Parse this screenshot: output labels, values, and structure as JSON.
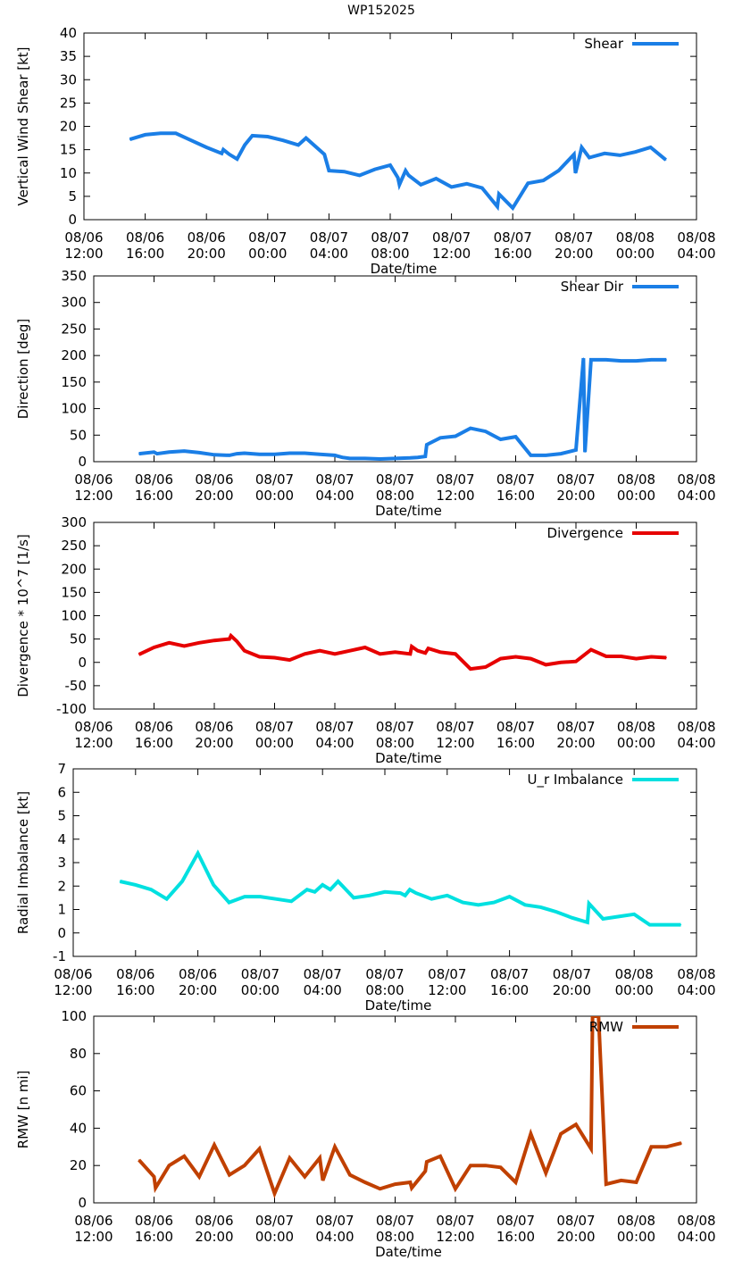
{
  "figure_title": "WP152025",
  "chart_data": [
    {
      "type": "line",
      "title": "",
      "xlabel": "Date/time",
      "ylabel": "Vertical Wind Shear [kt]",
      "ylim": [
        0,
        40
      ],
      "yticks": [
        0,
        5,
        10,
        15,
        20,
        25,
        30,
        35,
        40
      ],
      "xlim_hours": [
        0,
        40
      ],
      "xticks": [
        {
          "h": 0,
          "line1": "08/06",
          "line2": "12:00"
        },
        {
          "h": 4,
          "line1": "08/06",
          "line2": "16:00"
        },
        {
          "h": 8,
          "line1": "08/06",
          "line2": "20:00"
        },
        {
          "h": 12,
          "line1": "08/07",
          "line2": "00:00"
        },
        {
          "h": 16,
          "line1": "08/07",
          "line2": "04:00"
        },
        {
          "h": 20,
          "line1": "08/07",
          "line2": "08:00"
        },
        {
          "h": 24,
          "line1": "08/07",
          "line2": "12:00"
        },
        {
          "h": 28,
          "line1": "08/07",
          "line2": "16:00"
        },
        {
          "h": 32,
          "line1": "08/07",
          "line2": "20:00"
        },
        {
          "h": 36,
          "line1": "08/08",
          "line2": "00:00"
        },
        {
          "h": 40,
          "line1": "08/08",
          "line2": "04:00"
        }
      ],
      "legend": "top-right",
      "series": [
        {
          "name": "Shear",
          "color": "#1a7ee6",
          "x": [
            3,
            4,
            5,
            6,
            7,
            8,
            9,
            9.1,
            9.5,
            10,
            10.5,
            11,
            12,
            13,
            14,
            14.5,
            15.7,
            16,
            17,
            18,
            19,
            20,
            20.5,
            20.6,
            21,
            21.2,
            22,
            23,
            24,
            25,
            26,
            27,
            27.1,
            28,
            29,
            30,
            31,
            32,
            32.1,
            32.5,
            33,
            34,
            35,
            36,
            37,
            38
          ],
          "y": [
            17.2,
            18.2,
            18.5,
            18.5,
            17,
            15.5,
            14.2,
            15,
            14,
            13,
            16,
            18,
            17.8,
            17,
            16,
            17.5,
            14,
            10.5,
            10.3,
            9.5,
            10.8,
            11.7,
            9,
            7.5,
            10.5,
            9.5,
            7.5,
            8.8,
            7,
            7.7,
            6.8,
            2.8,
            5.5,
            2.5,
            7.8,
            8.4,
            10.5,
            14,
            10,
            15.5,
            13.3,
            14.2,
            13.8,
            14.5,
            15.5,
            12.8
          ]
        }
      ]
    },
    {
      "type": "line",
      "title": "",
      "xlabel": "Date/time",
      "ylabel": "Direction [deg]",
      "ylim": [
        0,
        350
      ],
      "yticks": [
        0,
        50,
        100,
        150,
        200,
        250,
        300,
        350
      ],
      "xlim_hours": [
        0,
        40
      ],
      "xticks": [
        {
          "h": 0,
          "line1": "08/06",
          "line2": "12:00"
        },
        {
          "h": 4,
          "line1": "08/06",
          "line2": "16:00"
        },
        {
          "h": 8,
          "line1": "08/06",
          "line2": "20:00"
        },
        {
          "h": 12,
          "line1": "08/07",
          "line2": "00:00"
        },
        {
          "h": 16,
          "line1": "08/07",
          "line2": "04:00"
        },
        {
          "h": 20,
          "line1": "08/07",
          "line2": "08:00"
        },
        {
          "h": 24,
          "line1": "08/07",
          "line2": "12:00"
        },
        {
          "h": 28,
          "line1": "08/07",
          "line2": "16:00"
        },
        {
          "h": 32,
          "line1": "08/07",
          "line2": "20:00"
        },
        {
          "h": 36,
          "line1": "08/08",
          "line2": "00:00"
        },
        {
          "h": 40,
          "line1": "08/08",
          "line2": "04:00"
        }
      ],
      "legend": "top-right",
      "series": [
        {
          "name": "Shear Dir",
          "color": "#1a7ee6",
          "x": [
            3,
            4,
            4.2,
            5,
            6,
            7,
            8,
            9,
            9.5,
            10,
            11,
            12,
            13,
            14,
            15,
            16,
            16.5,
            17,
            18,
            19,
            20,
            21,
            21.5,
            22,
            22.1,
            23,
            24,
            25,
            26,
            27,
            28,
            29,
            30,
            31,
            32,
            32.5,
            32.6,
            33,
            34,
            35,
            36,
            37,
            38
          ],
          "y": [
            15,
            18,
            15,
            18,
            20,
            17,
            13,
            12,
            15,
            16,
            14,
            14,
            16,
            16,
            14,
            12,
            8,
            6,
            6,
            5,
            6,
            7,
            8,
            10,
            32,
            45,
            48,
            63,
            57,
            42,
            47,
            12,
            12,
            15,
            22,
            195,
            18,
            192,
            192,
            190,
            190,
            192,
            192
          ]
        }
      ]
    },
    {
      "type": "line",
      "title": "",
      "xlabel": "Date/time",
      "ylabel": "Divergence * 10^7 [1/s]",
      "ylim": [
        -100,
        300
      ],
      "yticks": [
        -100,
        -50,
        0,
        50,
        100,
        150,
        200,
        250,
        300
      ],
      "xlim_hours": [
        0,
        40
      ],
      "xticks": [
        {
          "h": 0,
          "line1": "08/06",
          "line2": "12:00"
        },
        {
          "h": 4,
          "line1": "08/06",
          "line2": "16:00"
        },
        {
          "h": 8,
          "line1": "08/06",
          "line2": "20:00"
        },
        {
          "h": 12,
          "line1": "08/07",
          "line2": "00:00"
        },
        {
          "h": 16,
          "line1": "08/07",
          "line2": "04:00"
        },
        {
          "h": 20,
          "line1": "08/07",
          "line2": "08:00"
        },
        {
          "h": 24,
          "line1": "08/07",
          "line2": "12:00"
        },
        {
          "h": 28,
          "line1": "08/07",
          "line2": "16:00"
        },
        {
          "h": 32,
          "line1": "08/07",
          "line2": "20:00"
        },
        {
          "h": 36,
          "line1": "08/08",
          "line2": "00:00"
        },
        {
          "h": 40,
          "line1": "08/08",
          "line2": "04:00"
        }
      ],
      "legend": "top-right",
      "series": [
        {
          "name": "Divergence",
          "color": "#e60000",
          "x": [
            3,
            4,
            5,
            6,
            7,
            8,
            9,
            9.1,
            9.5,
            10,
            11,
            12,
            13,
            14,
            15,
            16,
            17,
            18,
            19,
            20,
            21,
            21.1,
            21.5,
            22,
            22.2,
            23,
            24,
            25,
            26,
            27,
            28,
            29,
            30,
            31,
            32,
            33,
            34,
            35,
            36,
            37,
            38
          ],
          "y": [
            17,
            32,
            42,
            35,
            42,
            47,
            50,
            57,
            45,
            25,
            12,
            10,
            5,
            18,
            25,
            18,
            25,
            32,
            18,
            22,
            18,
            34,
            25,
            20,
            30,
            22,
            18,
            -14,
            -10,
            8,
            12,
            8,
            -5,
            0,
            2,
            27,
            13,
            13,
            8,
            12,
            10
          ]
        }
      ]
    },
    {
      "type": "line",
      "title": "",
      "xlabel": "Date/time",
      "ylabel": "Radial Imbalance [kt]",
      "ylim": [
        -1,
        7
      ],
      "yticks": [
        -1,
        0,
        1,
        2,
        3,
        4,
        5,
        6,
        7
      ],
      "xlim_hours": [
        0,
        40
      ],
      "xticks": [
        {
          "h": 0,
          "line1": "08/06",
          "line2": "12:00"
        },
        {
          "h": 4,
          "line1": "08/06",
          "line2": "16:00"
        },
        {
          "h": 8,
          "line1": "08/06",
          "line2": "20:00"
        },
        {
          "h": 12,
          "line1": "08/07",
          "line2": "00:00"
        },
        {
          "h": 16,
          "line1": "08/07",
          "line2": "04:00"
        },
        {
          "h": 20,
          "line1": "08/07",
          "line2": "08:00"
        },
        {
          "h": 24,
          "line1": "08/07",
          "line2": "12:00"
        },
        {
          "h": 28,
          "line1": "08/07",
          "line2": "16:00"
        },
        {
          "h": 32,
          "line1": "08/07",
          "line2": "20:00"
        },
        {
          "h": 36,
          "line1": "08/08",
          "line2": "00:00"
        },
        {
          "h": 40,
          "line1": "08/08",
          "line2": "04:00"
        }
      ],
      "legend": "top-right",
      "series": [
        {
          "name": "U_r Imbalance",
          "color": "#00e0e0",
          "x": [
            3,
            4,
            5,
            6,
            7,
            8,
            9,
            10,
            11,
            12,
            13,
            14,
            14.5,
            15,
            15.5,
            16,
            16.5,
            17,
            18,
            19,
            20,
            21,
            21.3,
            21.6,
            22,
            23,
            24,
            25,
            26,
            27,
            28,
            29,
            30,
            31,
            32,
            33,
            33.1,
            34,
            35,
            36,
            37,
            38,
            39
          ],
          "y": [
            2.2,
            2.05,
            1.85,
            1.45,
            2.2,
            3.4,
            2.05,
            1.3,
            1.55,
            1.55,
            1.45,
            1.35,
            1.6,
            1.85,
            1.75,
            2.05,
            1.85,
            2.2,
            1.5,
            1.6,
            1.75,
            1.7,
            1.6,
            1.85,
            1.7,
            1.45,
            1.6,
            1.3,
            1.2,
            1.3,
            1.55,
            1.2,
            1.1,
            0.9,
            0.65,
            0.45,
            1.25,
            0.6,
            0.7,
            0.8,
            0.35,
            0.35,
            0.35
          ]
        }
      ]
    },
    {
      "type": "line",
      "title": "",
      "xlabel": "Date/time",
      "ylabel": "RMW [n mi]",
      "ylim": [
        0,
        100
      ],
      "yticks": [
        0,
        20,
        40,
        60,
        80,
        100
      ],
      "xlim_hours": [
        0,
        40
      ],
      "xticks": [
        {
          "h": 0,
          "line1": "08/06",
          "line2": "12:00"
        },
        {
          "h": 4,
          "line1": "08/06",
          "line2": "16:00"
        },
        {
          "h": 8,
          "line1": "08/06",
          "line2": "20:00"
        },
        {
          "h": 12,
          "line1": "08/07",
          "line2": "00:00"
        },
        {
          "h": 16,
          "line1": "08/07",
          "line2": "04:00"
        },
        {
          "h": 20,
          "line1": "08/07",
          "line2": "08:00"
        },
        {
          "h": 24,
          "line1": "08/07",
          "line2": "12:00"
        },
        {
          "h": 28,
          "line1": "08/07",
          "line2": "16:00"
        },
        {
          "h": 32,
          "line1": "08/07",
          "line2": "20:00"
        },
        {
          "h": 36,
          "line1": "08/08",
          "line2": "00:00"
        },
        {
          "h": 40,
          "line1": "08/08",
          "line2": "04:00"
        }
      ],
      "legend": "top-right",
      "series": [
        {
          "name": "RMW",
          "color": "#c04000",
          "x": [
            3,
            4,
            4.1,
            5,
            6,
            7,
            8,
            9,
            10,
            11,
            12,
            13,
            14,
            15,
            15.2,
            16,
            17,
            18,
            19,
            20,
            21,
            21.1,
            22,
            22.1,
            23,
            24,
            25,
            26,
            27,
            28,
            29,
            30,
            31,
            32,
            33,
            33.1,
            33.5,
            34,
            35,
            36,
            37,
            38,
            39
          ],
          "y": [
            23,
            14,
            8,
            20,
            25,
            14,
            31,
            15,
            20,
            29,
            5,
            24,
            14,
            24,
            12,
            30,
            15,
            11,
            7.5,
            10,
            11,
            8,
            17,
            22,
            25,
            7.5,
            20,
            20,
            19,
            11,
            37,
            16,
            37,
            42,
            29,
            100,
            100,
            10,
            12,
            11,
            30,
            30,
            32
          ]
        }
      ]
    }
  ]
}
